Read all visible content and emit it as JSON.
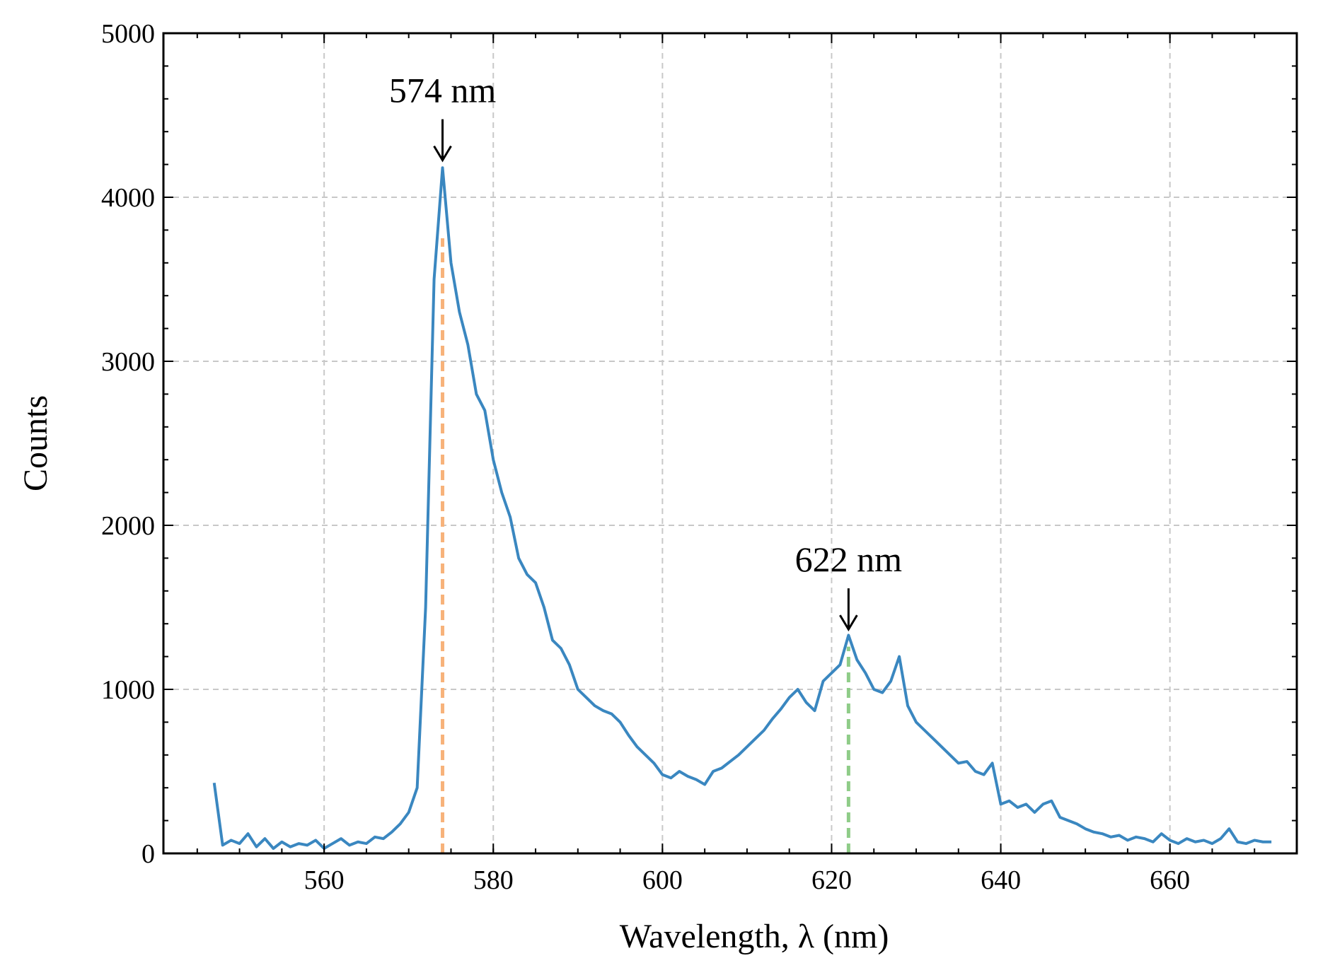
{
  "chart_data": {
    "type": "line",
    "xlabel": "Wavelength, λ (nm)",
    "ylabel": "Counts",
    "x": [
      547,
      548,
      549,
      550,
      551,
      552,
      553,
      554,
      555,
      556,
      557,
      558,
      559,
      560,
      561,
      562,
      563,
      564,
      565,
      566,
      567,
      568,
      569,
      570,
      571,
      572,
      573,
      574,
      575,
      576,
      577,
      578,
      579,
      580,
      581,
      582,
      583,
      584,
      585,
      586,
      587,
      588,
      589,
      590,
      591,
      592,
      593,
      594,
      595,
      596,
      597,
      598,
      599,
      600,
      601,
      602,
      603,
      604,
      605,
      606,
      607,
      608,
      609,
      610,
      611,
      612,
      613,
      614,
      615,
      616,
      617,
      618,
      619,
      620,
      621,
      622,
      623,
      624,
      625,
      626,
      627,
      628,
      629,
      630,
      631,
      632,
      633,
      634,
      635,
      636,
      637,
      638,
      639,
      640,
      641,
      642,
      643,
      644,
      645,
      646,
      647,
      648,
      649,
      650,
      651,
      652,
      653,
      654,
      655,
      656,
      657,
      658,
      659,
      660,
      661,
      662,
      663,
      664,
      665,
      666,
      667,
      668,
      669,
      670,
      671,
      672
    ],
    "values": [
      430,
      50,
      80,
      60,
      120,
      40,
      90,
      30,
      70,
      40,
      60,
      50,
      80,
      30,
      60,
      90,
      50,
      70,
      60,
      100,
      90,
      130,
      180,
      250,
      400,
      1500,
      3500,
      4180,
      3600,
      3300,
      3100,
      2800,
      2700,
      2400,
      2200,
      2050,
      1800,
      1700,
      1650,
      1500,
      1300,
      1250,
      1150,
      1000,
      950,
      900,
      870,
      850,
      800,
      720,
      650,
      600,
      550,
      480,
      460,
      500,
      470,
      450,
      420,
      500,
      520,
      560,
      600,
      650,
      700,
      750,
      820,
      880,
      950,
      1000,
      920,
      870,
      1050,
      1100,
      1150,
      1330,
      1180,
      1100,
      1000,
      980,
      1050,
      1200,
      900,
      800,
      750,
      700,
      650,
      600,
      550,
      560,
      500,
      480,
      550,
      300,
      320,
      280,
      300,
      250,
      300,
      320,
      220,
      200,
      180,
      150,
      130,
      120,
      100,
      110,
      80,
      100,
      90,
      70,
      120,
      80,
      60,
      90,
      70,
      80,
      60,
      90,
      150,
      70,
      60,
      80,
      70,
      70
    ],
    "color": "#3a87c0",
    "xlim": [
      541,
      675
    ],
    "ylim": [
      0,
      5000
    ],
    "xticks": [
      560,
      580,
      600,
      620,
      640,
      660
    ],
    "yticks": [
      0,
      1000,
      2000,
      3000,
      4000,
      5000
    ],
    "xticks_minor": [
      545,
      550,
      555,
      560,
      565,
      570,
      575,
      580,
      585,
      590,
      595,
      600,
      605,
      610,
      615,
      620,
      625,
      630,
      635,
      640,
      645,
      650,
      655,
      660,
      665,
      670,
      675
    ],
    "yticks_minor": [
      0,
      200,
      400,
      600,
      800,
      1000,
      1200,
      1400,
      1600,
      1800,
      2000,
      2200,
      2400,
      2600,
      2800,
      3000,
      3200,
      3400,
      3600,
      3800,
      4000,
      4200,
      4400,
      4600,
      4800,
      5000
    ],
    "grid": true,
    "vlines": [
      {
        "x": 574,
        "y": 3750,
        "color": "#f7b27a"
      },
      {
        "x": 622,
        "y": 1260,
        "color": "#8fcc88"
      }
    ],
    "annotations": [
      {
        "text": "574 nm",
        "x": 574,
        "y": 4200
      },
      {
        "text": "622 nm",
        "x": 622,
        "y": 1340
      }
    ]
  }
}
